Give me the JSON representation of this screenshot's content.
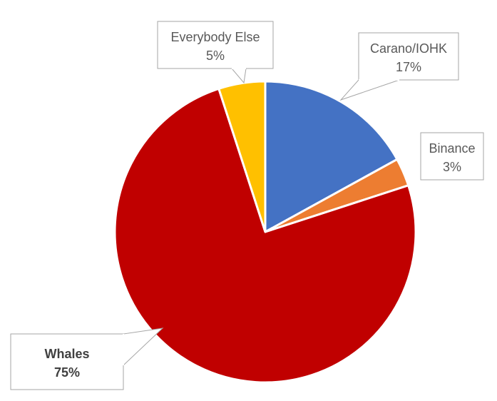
{
  "chart_data": {
    "type": "pie",
    "title": "",
    "slices": [
      {
        "label": "Carano/IOHK",
        "value": 17,
        "display": "17%",
        "color": "#4472C4"
      },
      {
        "label": "Binance",
        "value": 3,
        "display": "3%",
        "color": "#ED7D31"
      },
      {
        "label": "Whales",
        "value": 75,
        "display": "75%",
        "color": "#C00000",
        "bold": true
      },
      {
        "label": "Everybody Else",
        "value": 5,
        "display": "5%",
        "color": "#FFC000"
      }
    ],
    "start_angle_deg": 0,
    "direction": "clockwise",
    "legend": "none"
  }
}
